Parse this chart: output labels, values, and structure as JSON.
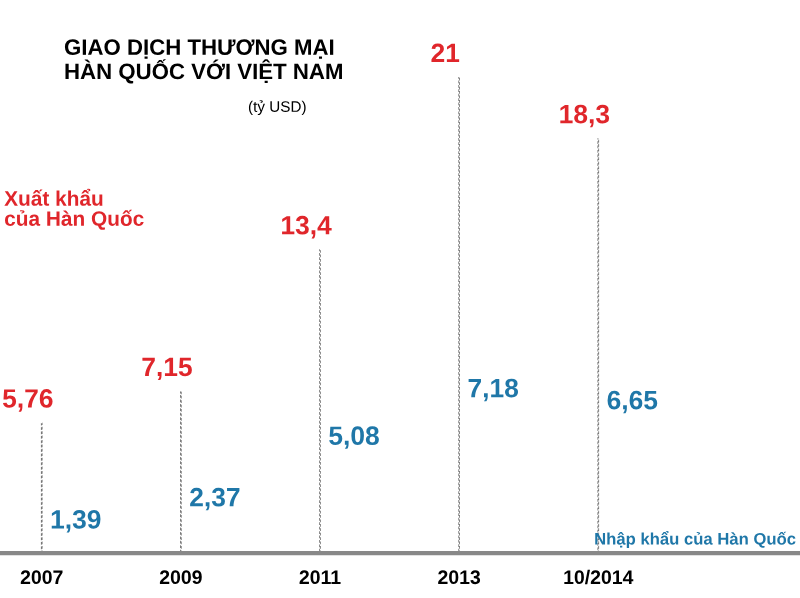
{
  "chart_data": {
    "type": "bar",
    "title": "GIAO DỊCH THƯƠNG MẠI\nHÀN QUỐC VỚI VIỆT NAM",
    "subtitle": "(tỷ USD)",
    "categories": [
      "2007",
      "2009",
      "2011",
      "2013",
      "10/2014"
    ],
    "series": [
      {
        "name": "Xuất khẩu\ncủa Hàn Quốc",
        "color": "#777777",
        "values": [
          5.76,
          7.15,
          13.4,
          21,
          18.3
        ],
        "line_style": "dotted",
        "value_labels": [
          "5,76",
          "7,15",
          "13,4",
          "21",
          "18,3"
        ]
      }
    ],
    "annotations": [
      {
        "text": "1,39",
        "x": "2007",
        "y": 1.39
      },
      {
        "text": "2,37",
        "x": "2009",
        "y": 2.37
      },
      {
        "text": "5,08",
        "x": "2011",
        "y": 5.08
      },
      {
        "text": "7,18",
        "x": "2013",
        "y": 7.18
      },
      {
        "text": "6,65",
        "x": "10/2014",
        "y": 6.65
      },
      "Nhập khẩu của Hàn Quốc"
    ],
    "tick_labels": "x"
  }
}
